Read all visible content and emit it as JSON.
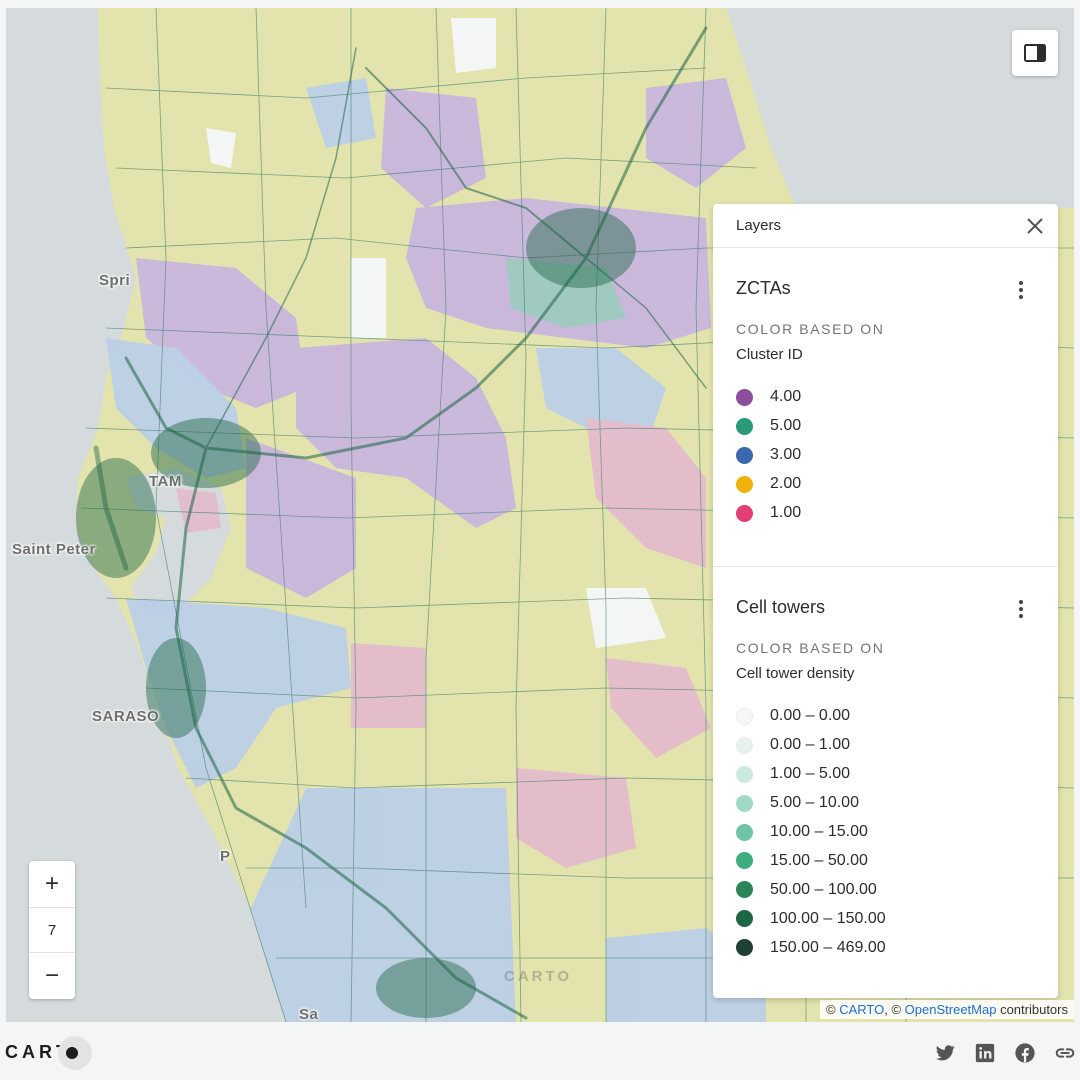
{
  "map": {
    "city_labels": [
      "Spri",
      "TAM",
      "Saint Peter",
      "SARASO",
      "P",
      "Sa"
    ],
    "zoom_level": "7",
    "zoom_in": "+",
    "zoom_out": "−",
    "watermark": "CARTO",
    "cluster_colors": {
      "4.00": "#c9b6de",
      "5.00": "#cfe9dc",
      "3.00": "#bccfe6",
      "2.00": "#e3e3ad",
      "1.00": "#e3bccb"
    }
  },
  "panel_toggle_icon": "sidebar-panel-icon",
  "layers_panel": {
    "title": "Layers",
    "close_icon": "close-icon",
    "layers": [
      {
        "title": "ZCTAs",
        "color_based_on_label": "COLOR BASED ON",
        "attribute": "Cluster ID",
        "legend": [
          {
            "label": "4.00",
            "color": "#8b4f9c"
          },
          {
            "label": "5.00",
            "color": "#2a9a7a"
          },
          {
            "label": "3.00",
            "color": "#3c68ad"
          },
          {
            "label": "2.00",
            "color": "#f0b10a"
          },
          {
            "label": "1.00",
            "color": "#e43f75"
          }
        ]
      },
      {
        "title": "Cell towers",
        "color_based_on_label": "COLOR BASED ON",
        "attribute": "Cell tower density",
        "legend": [
          {
            "label": "0.00 – 0.00",
            "color": "#f6f8f7"
          },
          {
            "label": "0.00 – 1.00",
            "color": "#e8f2ed"
          },
          {
            "label": "1.00 – 5.00",
            "color": "#cdeae1"
          },
          {
            "label": "5.00 – 10.00",
            "color": "#a1d9c6"
          },
          {
            "label": "10.00 – 15.00",
            "color": "#6fc4a6"
          },
          {
            "label": "15.00 – 50.00",
            "color": "#3fae7e"
          },
          {
            "label": "50.00 – 100.00",
            "color": "#2b8559"
          },
          {
            "label": "100.00 – 150.00",
            "color": "#1c6644"
          },
          {
            "label": "150.00 – 469.00",
            "color": "#1f4133"
          }
        ]
      }
    ]
  },
  "attribution": {
    "prefix1": "© ",
    "carto": "CARTO",
    "prefix2": ", © ",
    "osm": "OpenStreetMap",
    "suffix": " contributors"
  },
  "footer": {
    "logo": "CART",
    "share_icons": [
      "twitter-icon",
      "linkedin-icon",
      "facebook-icon",
      "link-icon"
    ]
  }
}
